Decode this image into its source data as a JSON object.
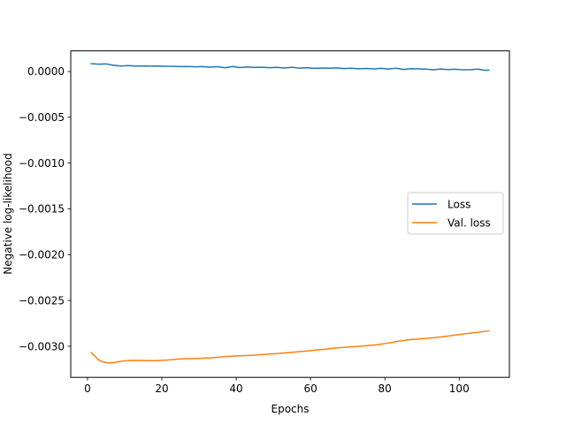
{
  "chart_data": {
    "type": "line",
    "title": "",
    "xlabel": "Epochs",
    "ylabel": "Negative log-likelihood",
    "xlim": [
      -4.5,
      113.5
    ],
    "ylim": [
      -0.00334,
      0.000225
    ],
    "xticks": [
      0,
      20,
      40,
      60,
      80,
      100
    ],
    "xtick_labels": [
      "0",
      "20",
      "40",
      "60",
      "80",
      "100"
    ],
    "yticks": [
      0.0,
      -0.0005,
      -0.001,
      -0.0015,
      -0.002,
      -0.0025,
      -0.003
    ],
    "ytick_labels": [
      "0.0000",
      "−0.0005",
      "−0.0010",
      "−0.0015",
      "−0.0020",
      "−0.0025",
      "−0.0030"
    ],
    "grid": false,
    "legend": "center-right",
    "series": [
      {
        "name": "Loss",
        "color": "#1f77b4",
        "x": [
          1,
          3,
          5,
          7,
          9,
          11,
          13,
          15,
          17,
          19,
          21,
          23,
          25,
          27,
          29,
          31,
          33,
          35,
          37,
          39,
          41,
          43,
          45,
          47,
          49,
          51,
          53,
          55,
          57,
          59,
          61,
          63,
          65,
          67,
          69,
          71,
          73,
          75,
          77,
          79,
          81,
          83,
          85,
          87,
          89,
          91,
          93,
          95,
          97,
          99,
          101,
          103,
          105,
          107,
          108
        ],
        "y": [
          8.5e-05,
          8e-05,
          8.3e-05,
          6.8e-05,
          6e-05,
          6.4e-05,
          5.9e-05,
          6.1e-05,
          5.8e-05,
          6e-05,
          5.7e-05,
          5.6e-05,
          5.3e-05,
          5.5e-05,
          5.1e-05,
          5.3e-05,
          4.8e-05,
          5.2e-05,
          4e-05,
          5.5e-05,
          4.3e-05,
          4.9e-05,
          4.4e-05,
          4.6e-05,
          4.1e-05,
          4.5e-05,
          3.8e-05,
          4.6e-05,
          3.6e-05,
          4.2e-05,
          3.4e-05,
          3.8e-05,
          3.5e-05,
          3.9e-05,
          3.2e-05,
          3.5e-05,
          3e-05,
          3.3e-05,
          2.8e-05,
          3.4e-05,
          2.7e-05,
          3.6e-05,
          2.2e-05,
          3.1e-05,
          2.8e-05,
          2.6e-05,
          1.9e-05,
          2.7e-05,
          2.1e-05,
          2.5e-05,
          1.8e-05,
          2e-05,
          2.6e-05,
          1.3e-05,
          1.5e-05
        ]
      },
      {
        "name": "Val. loss",
        "color": "#ff7f0e",
        "x": [
          1,
          2,
          3,
          4,
          5,
          6,
          7,
          8,
          9,
          10,
          12,
          15,
          18,
          21,
          24,
          27,
          30,
          33,
          36,
          39,
          42,
          45,
          48,
          51,
          54,
          57,
          60,
          63,
          66,
          69,
          72,
          75,
          78,
          81,
          84,
          87,
          90,
          93,
          96,
          99,
          102,
          105,
          108
        ],
        "y": [
          -0.00307,
          -0.00311,
          -0.00315,
          -0.00317,
          -0.003178,
          -0.003182,
          -0.00318,
          -0.003172,
          -0.003165,
          -0.00316,
          -0.003155,
          -0.003156,
          -0.003159,
          -0.003153,
          -0.003142,
          -0.003135,
          -0.003133,
          -0.003127,
          -0.003117,
          -0.003108,
          -0.003103,
          -0.003097,
          -0.003088,
          -0.00308,
          -0.00307,
          -0.00306,
          -0.003048,
          -0.003037,
          -0.003022,
          -0.003012,
          -0.003004,
          -0.002995,
          -0.002984,
          -0.002965,
          -0.002943,
          -0.002927,
          -0.002918,
          -0.002908,
          -0.002894,
          -0.002878,
          -0.002862,
          -0.002848,
          -0.002832
        ]
      }
    ]
  }
}
